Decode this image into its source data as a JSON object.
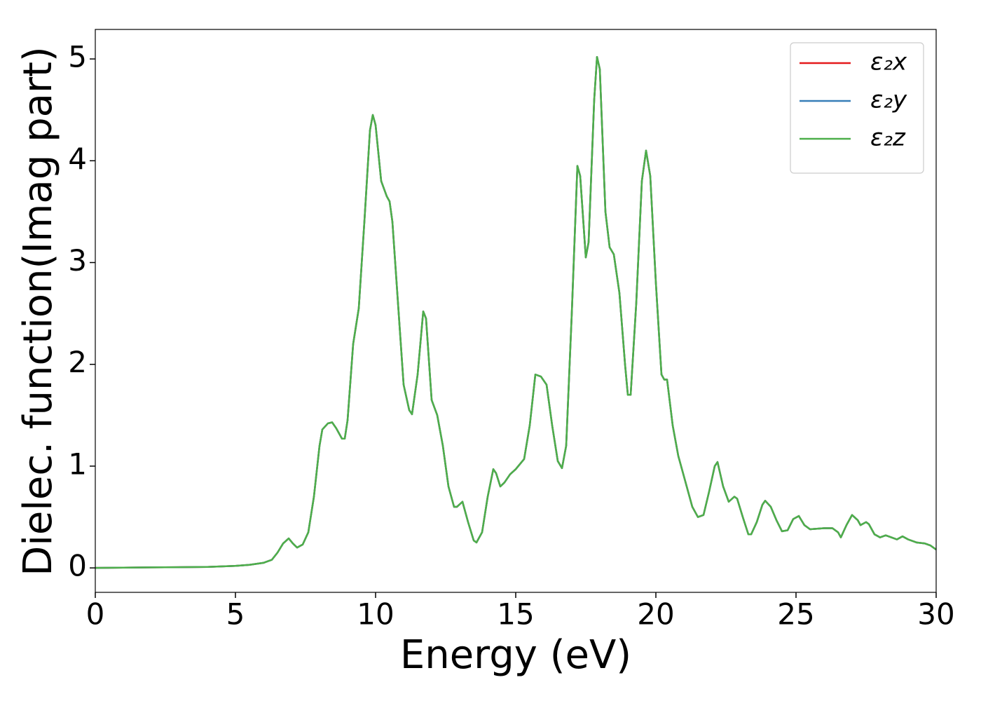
{
  "chart_data": {
    "type": "line",
    "xlabel": "Energy (eV)",
    "ylabel": "Dielec. function(Imag part)",
    "x": [
      0,
      2,
      4,
      5,
      5.5,
      6,
      6.3,
      6.5,
      6.7,
      6.9,
      7.05,
      7.2,
      7.4,
      7.6,
      7.8,
      8.0,
      8.1,
      8.3,
      8.45,
      8.6,
      8.8,
      8.9,
      9.0,
      9.2,
      9.4,
      9.6,
      9.8,
      9.9,
      10.0,
      10.2,
      10.4,
      10.5,
      10.6,
      10.8,
      11.0,
      11.2,
      11.3,
      11.5,
      11.7,
      11.8,
      12.0,
      12.2,
      12.4,
      12.6,
      12.8,
      12.9,
      13.1,
      13.3,
      13.5,
      13.6,
      13.8,
      14.0,
      14.2,
      14.3,
      14.45,
      14.6,
      14.8,
      15.0,
      15.3,
      15.5,
      15.7,
      15.9,
      16.1,
      16.3,
      16.5,
      16.65,
      16.8,
      17.0,
      17.2,
      17.3,
      17.5,
      17.6,
      17.8,
      17.9,
      18.0,
      18.2,
      18.35,
      18.5,
      18.7,
      18.9,
      19.0,
      19.1,
      19.3,
      19.5,
      19.65,
      19.8,
      20.0,
      20.2,
      20.3,
      20.4,
      20.6,
      20.8,
      21.0,
      21.3,
      21.5,
      21.7,
      21.9,
      22.1,
      22.2,
      22.4,
      22.6,
      22.8,
      22.9,
      23.1,
      23.3,
      23.4,
      23.6,
      23.8,
      23.9,
      24.1,
      24.3,
      24.5,
      24.7,
      24.9,
      25.1,
      25.3,
      25.5,
      26.0,
      26.3,
      26.5,
      26.6,
      26.8,
      27.0,
      27.2,
      27.3,
      27.5,
      27.6,
      27.8,
      28.0,
      28.2,
      28.4,
      28.6,
      28.8,
      29.0,
      29.3,
      29.6,
      29.8,
      30.0
    ],
    "series": [
      {
        "name": "ε₂x",
        "color": "#e41a1c",
        "values": [
          0,
          0.005,
          0.01,
          0.02,
          0.03,
          0.05,
          0.08,
          0.15,
          0.24,
          0.29,
          0.24,
          0.2,
          0.23,
          0.35,
          0.7,
          1.2,
          1.36,
          1.42,
          1.43,
          1.37,
          1.27,
          1.27,
          1.45,
          2.2,
          2.55,
          3.4,
          4.3,
          4.45,
          4.35,
          3.8,
          3.65,
          3.6,
          3.4,
          2.6,
          1.8,
          1.55,
          1.51,
          1.9,
          2.52,
          2.45,
          1.65,
          1.5,
          1.2,
          0.8,
          0.6,
          0.6,
          0.65,
          0.45,
          0.27,
          0.25,
          0.35,
          0.7,
          0.97,
          0.93,
          0.8,
          0.84,
          0.92,
          0.97,
          1.07,
          1.4,
          1.9,
          1.88,
          1.8,
          1.4,
          1.05,
          0.98,
          1.2,
          2.5,
          3.95,
          3.85,
          3.05,
          3.2,
          4.6,
          5.02,
          4.9,
          3.5,
          3.15,
          3.08,
          2.7,
          2.0,
          1.7,
          1.7,
          2.6,
          3.8,
          4.1,
          3.85,
          2.8,
          1.9,
          1.85,
          1.85,
          1.4,
          1.1,
          0.9,
          0.6,
          0.5,
          0.52,
          0.75,
          1.0,
          1.04,
          0.8,
          0.65,
          0.7,
          0.68,
          0.5,
          0.33,
          0.33,
          0.45,
          0.62,
          0.66,
          0.6,
          0.47,
          0.36,
          0.37,
          0.48,
          0.51,
          0.42,
          0.38,
          0.39,
          0.39,
          0.35,
          0.3,
          0.42,
          0.52,
          0.47,
          0.42,
          0.45,
          0.43,
          0.33,
          0.3,
          0.32,
          0.3,
          0.28,
          0.31,
          0.28,
          0.25,
          0.24,
          0.22,
          0.18
        ]
      },
      {
        "name": "ε₂y",
        "color": "#377eb8",
        "values": [
          0,
          0.005,
          0.01,
          0.02,
          0.03,
          0.05,
          0.08,
          0.15,
          0.24,
          0.29,
          0.24,
          0.2,
          0.23,
          0.35,
          0.7,
          1.2,
          1.36,
          1.42,
          1.43,
          1.37,
          1.27,
          1.27,
          1.45,
          2.2,
          2.55,
          3.4,
          4.3,
          4.45,
          4.35,
          3.8,
          3.65,
          3.6,
          3.4,
          2.6,
          1.8,
          1.55,
          1.51,
          1.9,
          2.52,
          2.45,
          1.65,
          1.5,
          1.2,
          0.8,
          0.6,
          0.6,
          0.65,
          0.45,
          0.27,
          0.25,
          0.35,
          0.7,
          0.97,
          0.93,
          0.8,
          0.84,
          0.92,
          0.97,
          1.07,
          1.4,
          1.9,
          1.88,
          1.8,
          1.4,
          1.05,
          0.98,
          1.2,
          2.5,
          3.95,
          3.85,
          3.05,
          3.2,
          4.6,
          5.02,
          4.9,
          3.5,
          3.15,
          3.08,
          2.7,
          2.0,
          1.7,
          1.7,
          2.6,
          3.8,
          4.1,
          3.85,
          2.8,
          1.9,
          1.85,
          1.85,
          1.4,
          1.1,
          0.9,
          0.6,
          0.5,
          0.52,
          0.75,
          1.0,
          1.04,
          0.8,
          0.65,
          0.7,
          0.68,
          0.5,
          0.33,
          0.33,
          0.45,
          0.62,
          0.66,
          0.6,
          0.47,
          0.36,
          0.37,
          0.48,
          0.51,
          0.42,
          0.38,
          0.39,
          0.39,
          0.35,
          0.3,
          0.42,
          0.52,
          0.47,
          0.42,
          0.45,
          0.43,
          0.33,
          0.3,
          0.32,
          0.3,
          0.28,
          0.31,
          0.28,
          0.25,
          0.24,
          0.22,
          0.18
        ]
      },
      {
        "name": "ε₂z",
        "color": "#4daf4a",
        "values": [
          0,
          0.005,
          0.01,
          0.02,
          0.03,
          0.05,
          0.08,
          0.15,
          0.24,
          0.29,
          0.24,
          0.2,
          0.23,
          0.35,
          0.7,
          1.2,
          1.36,
          1.42,
          1.43,
          1.37,
          1.27,
          1.27,
          1.45,
          2.2,
          2.55,
          3.4,
          4.3,
          4.45,
          4.35,
          3.8,
          3.65,
          3.6,
          3.4,
          2.6,
          1.8,
          1.55,
          1.51,
          1.9,
          2.52,
          2.45,
          1.65,
          1.5,
          1.2,
          0.8,
          0.6,
          0.6,
          0.65,
          0.45,
          0.27,
          0.25,
          0.35,
          0.7,
          0.97,
          0.93,
          0.8,
          0.84,
          0.92,
          0.97,
          1.07,
          1.4,
          1.9,
          1.88,
          1.8,
          1.4,
          1.05,
          0.98,
          1.2,
          2.5,
          3.95,
          3.85,
          3.05,
          3.2,
          4.6,
          5.02,
          4.9,
          3.5,
          3.15,
          3.08,
          2.7,
          2.0,
          1.7,
          1.7,
          2.6,
          3.8,
          4.1,
          3.85,
          2.8,
          1.9,
          1.85,
          1.85,
          1.4,
          1.1,
          0.9,
          0.6,
          0.5,
          0.52,
          0.75,
          1.0,
          1.04,
          0.8,
          0.65,
          0.7,
          0.68,
          0.5,
          0.33,
          0.33,
          0.45,
          0.62,
          0.66,
          0.6,
          0.47,
          0.36,
          0.37,
          0.48,
          0.51,
          0.42,
          0.38,
          0.39,
          0.39,
          0.35,
          0.3,
          0.42,
          0.52,
          0.47,
          0.42,
          0.45,
          0.43,
          0.33,
          0.3,
          0.32,
          0.3,
          0.28,
          0.31,
          0.28,
          0.25,
          0.24,
          0.22,
          0.18
        ]
      }
    ],
    "xlim": [
      0,
      30
    ],
    "xticks": [
      0,
      5,
      10,
      15,
      20,
      25,
      30
    ],
    "ylim": [
      -0.24,
      5.29
    ],
    "yticks": [
      0,
      1,
      2,
      3,
      4,
      5
    ],
    "legend": "upper right"
  }
}
